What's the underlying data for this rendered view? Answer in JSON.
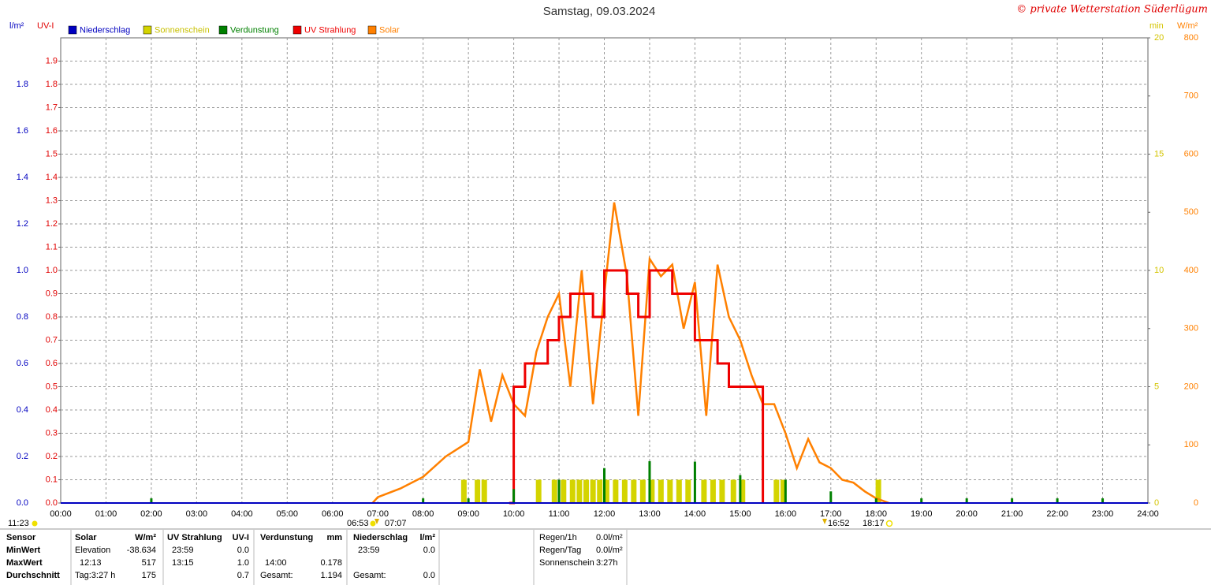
{
  "chart_data": {
    "type": "line",
    "title": "Samstag, 09.03.2024",
    "copyright": "© private Wetterstation Süderlügum",
    "xlim": [
      0,
      24
    ],
    "xticks": [
      {
        "value": 0,
        "label": "00:00"
      },
      {
        "value": 1,
        "label": "01:00"
      },
      {
        "value": 2,
        "label": "02:00"
      },
      {
        "value": 3,
        "label": "03:00"
      },
      {
        "value": 4,
        "label": "04:00"
      },
      {
        "value": 5,
        "label": "05:00"
      },
      {
        "value": 6,
        "label": "06:00"
      },
      {
        "value": 7,
        "label": "07:00"
      },
      {
        "value": 8,
        "label": "08:00"
      },
      {
        "value": 9,
        "label": "09:00"
      },
      {
        "value": 10,
        "label": "10:00"
      },
      {
        "value": 11,
        "label": "11:00"
      },
      {
        "value": 12,
        "label": "12:00"
      },
      {
        "value": 13,
        "label": "13:00"
      },
      {
        "value": 14,
        "label": "14:00"
      },
      {
        "value": 15,
        "label": "15:00"
      },
      {
        "value": 16,
        "label": "16:00"
      },
      {
        "value": 17,
        "label": "17:00"
      },
      {
        "value": 18,
        "label": "18:00"
      },
      {
        "value": 19,
        "label": "19:00"
      },
      {
        "value": 20,
        "label": "20:00"
      },
      {
        "value": 21,
        "label": "21:00"
      },
      {
        "value": 22,
        "label": "22:00"
      },
      {
        "value": 23,
        "label": "23:00"
      },
      {
        "value": 24,
        "label": "24:00"
      }
    ],
    "grid": true,
    "axes": [
      {
        "label": "l/m²",
        "color": "#0000c0",
        "lim": [
          0,
          2
        ],
        "ticks": [
          {
            "value": 0,
            "label": "0.0"
          },
          0.2,
          0.4,
          0.6,
          0.8,
          {
            "value": 1,
            "label": "1.0"
          },
          1.2,
          1.4,
          1.6,
          1.8
        ]
      },
      {
        "label": "UV-I",
        "color": "#e00000",
        "lim": [
          0,
          2
        ],
        "ticks": [
          {
            "value": 0,
            "label": "0.0"
          },
          0.1,
          0.2,
          0.3,
          0.4,
          0.5,
          0.6,
          0.7,
          0.8,
          0.9,
          {
            "value": 1,
            "label": "1.0"
          },
          1.1,
          1.2,
          1.3,
          1.4,
          1.5,
          1.6,
          1.7,
          1.8,
          1.9
        ]
      },
      {
        "label": "min",
        "color": "#d4c400",
        "lim": [
          0,
          20
        ],
        "ticks": [
          0,
          5,
          10,
          15,
          20
        ]
      },
      {
        "label": "W/m²",
        "color": "#ff8000",
        "lim": [
          0,
          800
        ],
        "ticks": [
          0,
          100,
          200,
          300,
          400,
          500,
          600,
          700,
          800
        ]
      }
    ],
    "series": [
      {
        "name": "Niederschlag",
        "color": "#0000c0",
        "axis": 0,
        "kind": "line",
        "x": [
          0,
          24
        ],
        "values": [
          0,
          0
        ]
      },
      {
        "name": "Sonnenschein",
        "color": "#d4d400",
        "axis": 2,
        "kind": "bar",
        "x": [
          8.9,
          9.2,
          9.35,
          10.55,
          10.9,
          11.1,
          11.3,
          11.45,
          11.6,
          11.75,
          11.9,
          12.05,
          12.25,
          12.45,
          12.65,
          12.85,
          13.05,
          13.25,
          13.45,
          13.65,
          13.85,
          14.2,
          14.4,
          14.6,
          14.85,
          15.05,
          15.8,
          15.95,
          18.05
        ],
        "values": [
          1,
          1,
          1,
          1,
          1,
          1,
          1,
          1,
          1,
          1,
          1,
          1,
          1,
          1,
          1,
          1,
          1,
          1,
          1,
          1,
          1,
          1,
          1,
          1,
          1,
          1,
          1,
          1,
          1
        ]
      },
      {
        "name": "Verdunstung",
        "color": "#008000",
        "axis": 0,
        "kind": "spike",
        "x": [
          2,
          8,
          9,
          10,
          11,
          12,
          13,
          14,
          15,
          16,
          17,
          18,
          19,
          20,
          21,
          22,
          23
        ],
        "values": [
          0.02,
          0.02,
          0.02,
          0.06,
          0.1,
          0.15,
          0.18,
          0.178,
          0.12,
          0.1,
          0.05,
          0.02,
          0.02,
          0.02,
          0.02,
          0.02,
          0.02
        ]
      },
      {
        "name": "UV Strahlung",
        "color": "#ee0000",
        "axis": 1,
        "kind": "step",
        "x": [
          9.9,
          10,
          10.25,
          10.5,
          10.75,
          11,
          11.25,
          11.5,
          11.75,
          12,
          12.25,
          12.5,
          12.75,
          13,
          13.25,
          13.5,
          13.75,
          14,
          14.25,
          14.5,
          14.75,
          15,
          15.25,
          15.5
        ],
        "values": [
          0,
          0.5,
          0.6,
          0.6,
          0.7,
          0.8,
          0.9,
          0.9,
          0.8,
          1.0,
          1.0,
          0.9,
          0.8,
          1.0,
          1.0,
          0.9,
          0.9,
          0.7,
          0.7,
          0.6,
          0.5,
          0.5,
          0.5,
          0
        ]
      },
      {
        "name": "Solar",
        "color": "#ff8000",
        "axis": 3,
        "kind": "line",
        "x": [
          6.883,
          7,
          7.5,
          8,
          8.5,
          9,
          9.25,
          9.5,
          9.75,
          10,
          10.25,
          10.5,
          10.75,
          11,
          11.25,
          11.5,
          11.75,
          12,
          12.217,
          12.5,
          12.75,
          13,
          13.25,
          13.5,
          13.75,
          14,
          14.25,
          14.5,
          14.75,
          15,
          15.25,
          15.5,
          15.75,
          16,
          16.25,
          16.5,
          16.75,
          17,
          17.25,
          17.5,
          17.75,
          18,
          18.283
        ],
        "values": [
          0,
          10,
          25,
          45,
          80,
          105,
          230,
          140,
          220,
          170,
          150,
          260,
          320,
          360,
          200,
          400,
          170,
          360,
          517,
          390,
          150,
          420,
          390,
          410,
          300,
          380,
          150,
          410,
          320,
          280,
          220,
          170,
          170,
          120,
          60,
          110,
          70,
          60,
          40,
          35,
          20,
          8,
          0
        ]
      }
    ],
    "annotations": [
      "11:23",
      "06:53",
      "07:07",
      "16:52",
      "18:17"
    ]
  },
  "summary": {
    "row_labels": [
      "Sensor",
      "MinWert",
      "MaxWert",
      "Durchschnitt"
    ],
    "groups": [
      {
        "name": "Solar",
        "unit": "W/m²",
        "min": [
          "Elevation",
          "-38.634"
        ],
        "max": [
          "12:13",
          "517"
        ],
        "avg": [
          "Tag:3:27 h",
          "175"
        ]
      },
      {
        "name": "UV Strahlung",
        "unit": "UV-I",
        "min": [
          "23:59",
          "0.0"
        ],
        "max": [
          "13:15",
          "1.0"
        ],
        "avg": [
          "0.7"
        ]
      },
      {
        "name": "Verdunstung",
        "unit": "mm",
        "max": [
          "14:00",
          "0.178"
        ],
        "avg": [
          "Gesamt:",
          "1.194"
        ]
      },
      {
        "name": "Niederschlag",
        "unit": "l/m²",
        "min": [
          "23:59",
          "0.0"
        ],
        "avg": [
          "Gesamt:",
          "0.0"
        ]
      }
    ],
    "stats": [
      [
        "Regen/1h",
        "0.0l/m²"
      ],
      [
        "Regen/Tag",
        "0.0l/m²"
      ],
      [
        "Sonnenschein",
        "3:27h"
      ]
    ]
  }
}
